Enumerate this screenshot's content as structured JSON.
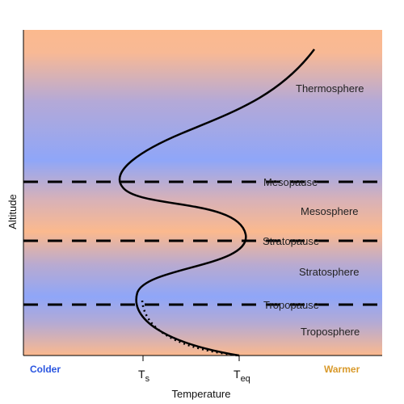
{
  "axes": {
    "y_title": "Altitude",
    "x_title": "Temperature",
    "cold_end": "Colder",
    "warm_end": "Warmer",
    "ticks": [
      {
        "main": "T",
        "sub": "s"
      },
      {
        "main": "T",
        "sub": "eq"
      }
    ]
  },
  "layers": {
    "thermosphere": "Thermosphere",
    "mesosphere": "Mesosphere",
    "stratosphere": "Stratosphere",
    "troposphere": "Troposphere"
  },
  "boundaries": {
    "mesopause": "Mesopause",
    "stratopause": "Stratopause",
    "tropopause": "Tropopause"
  },
  "colors": {
    "warm": "#fbb98e",
    "cold": "#8fa6f8",
    "colder_text": "#2a55e0",
    "warmer_text": "#d99a2b",
    "line": "#000000"
  }
}
